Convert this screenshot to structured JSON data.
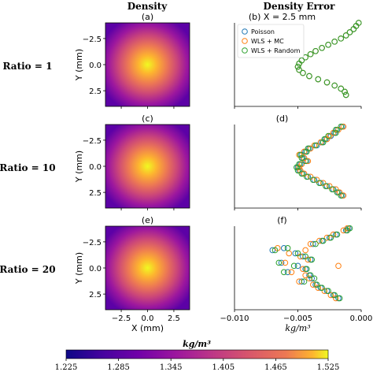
{
  "figure": {
    "col_titles": [
      "Density",
      "Density Error"
    ],
    "row_labels": [
      "Ratio = 1",
      "Ratio = 10",
      "Ratio = 20"
    ],
    "colors": {
      "poisson": "#1f77b4",
      "wls_mc": "#ff7f0e",
      "wls_random": "#2ca02c"
    }
  },
  "chart_data": [
    {
      "type": "heatmap",
      "panel": "(a)",
      "ylabel": "Y (mm)",
      "xlabel": "",
      "xlim": [
        -4,
        4
      ],
      "ylim": [
        -4,
        4
      ],
      "yticks": [
        "−2.5",
        "0.0",
        "2.5"
      ],
      "xticks": [],
      "colormap": "plasma",
      "value_range": [
        1.225,
        1.525
      ],
      "peak_center": [
        0,
        0
      ]
    },
    {
      "type": "scatter",
      "panel": "(b) X = 2.5 mm",
      "xlim": [
        -0.01,
        0.0
      ],
      "ylim": [
        -4,
        4
      ],
      "legend_position": "top-left",
      "series": [
        {
          "name": "Poisson",
          "color": "#1f77b4",
          "x": [
            -0.0002,
            -0.0004,
            -0.0006,
            -0.0009,
            -0.0012,
            -0.0016,
            -0.0021,
            -0.0026,
            -0.0031,
            -0.0036,
            -0.004,
            -0.0044,
            -0.0047,
            -0.0049,
            -0.005,
            -0.0049,
            -0.0046,
            -0.0041,
            -0.0034,
            -0.0027,
            -0.0021,
            -0.0016,
            -0.0013,
            -0.0012
          ],
          "y": [
            4.0,
            3.7,
            3.4,
            3.1,
            2.8,
            2.5,
            2.2,
            1.9,
            1.6,
            1.3,
            1.0,
            0.7,
            0.4,
            0.1,
            -0.2,
            -0.5,
            -0.8,
            -1.1,
            -1.4,
            -1.7,
            -2.0,
            -2.3,
            -2.6,
            -2.9
          ]
        },
        {
          "name": "WLS + MC",
          "color": "#ff7f0e",
          "x": [
            -0.0002,
            -0.0004,
            -0.0006,
            -0.0009,
            -0.0012,
            -0.0016,
            -0.0021,
            -0.0026,
            -0.0031,
            -0.0036,
            -0.004,
            -0.0044,
            -0.0047,
            -0.0049,
            -0.005,
            -0.0049,
            -0.0046,
            -0.0041,
            -0.0034,
            -0.0027,
            -0.0021,
            -0.0016,
            -0.0013,
            -0.0012
          ],
          "y": [
            4.0,
            3.7,
            3.4,
            3.1,
            2.8,
            2.5,
            2.2,
            1.9,
            1.6,
            1.3,
            1.0,
            0.7,
            0.4,
            0.1,
            -0.2,
            -0.5,
            -0.8,
            -1.1,
            -1.4,
            -1.7,
            -2.0,
            -2.3,
            -2.6,
            -2.9
          ]
        },
        {
          "name": "WLS + Random",
          "color": "#2ca02c",
          "x": [
            -0.0002,
            -0.0004,
            -0.0006,
            -0.0009,
            -0.0012,
            -0.0016,
            -0.0021,
            -0.0026,
            -0.0031,
            -0.0036,
            -0.004,
            -0.0044,
            -0.0047,
            -0.0049,
            -0.005,
            -0.0049,
            -0.0046,
            -0.0041,
            -0.0034,
            -0.0027,
            -0.0021,
            -0.0016,
            -0.0013,
            -0.0012
          ],
          "y": [
            4.0,
            3.7,
            3.4,
            3.1,
            2.8,
            2.5,
            2.2,
            1.9,
            1.6,
            1.3,
            1.0,
            0.7,
            0.4,
            0.1,
            -0.2,
            -0.5,
            -0.8,
            -1.1,
            -1.4,
            -1.7,
            -2.0,
            -2.3,
            -2.6,
            -2.9
          ]
        }
      ]
    },
    {
      "type": "heatmap",
      "panel": "(c)",
      "ylabel": "Y (mm)",
      "xlabel": "",
      "xlim": [
        -4,
        4
      ],
      "ylim": [
        -4,
        4
      ],
      "yticks": [
        "−2.5",
        "0.0",
        "2.5"
      ],
      "xticks": [],
      "colormap": "plasma",
      "value_range": [
        1.225,
        1.525
      ],
      "peak_center": [
        0,
        0
      ]
    },
    {
      "type": "scatter",
      "panel": "(d)",
      "xlim": [
        -0.01,
        0.0
      ],
      "ylim": [
        -4,
        4
      ],
      "series": [
        {
          "name": "Poisson",
          "color": "#1f77b4",
          "x": [
            -0.0015,
            -0.0019,
            -0.0021,
            -0.0024,
            -0.0028,
            -0.0031,
            -0.0035,
            -0.0041,
            -0.0044,
            -0.0047,
            -0.0046,
            -0.0043,
            -0.0048,
            -0.005,
            -0.0049,
            -0.0046,
            -0.0042,
            -0.0037,
            -0.0032,
            -0.0027,
            -0.0022,
            -0.0018,
            -0.0015
          ],
          "y": [
            3.8,
            3.5,
            3.2,
            2.9,
            2.6,
            2.3,
            2.0,
            1.7,
            1.4,
            1.1,
            0.8,
            0.5,
            0.2,
            -0.1,
            -0.4,
            -0.7,
            -1.0,
            -1.3,
            -1.6,
            -1.9,
            -2.2,
            -2.5,
            -2.8
          ]
        },
        {
          "name": "WLS + MC",
          "color": "#ff7f0e",
          "x": [
            -0.0014,
            -0.0018,
            -0.0022,
            -0.0025,
            -0.0027,
            -0.0032,
            -0.0037,
            -0.004,
            -0.0045,
            -0.0049,
            -0.0045,
            -0.0042,
            -0.0047,
            -0.0049,
            -0.0048,
            -0.0045,
            -0.004,
            -0.0035,
            -0.003,
            -0.0025,
            -0.002,
            -0.0017,
            -0.0014
          ],
          "y": [
            3.8,
            3.5,
            3.2,
            2.9,
            2.6,
            2.3,
            2.0,
            1.7,
            1.4,
            1.1,
            0.8,
            0.5,
            0.2,
            -0.1,
            -0.4,
            -0.7,
            -1.0,
            -1.3,
            -1.6,
            -1.9,
            -2.2,
            -2.5,
            -2.8
          ]
        },
        {
          "name": "WLS + Random",
          "color": "#2ca02c",
          "x": [
            -0.0016,
            -0.002,
            -0.002,
            -0.0026,
            -0.0029,
            -0.003,
            -0.0036,
            -0.0042,
            -0.0043,
            -0.0048,
            -0.0047,
            -0.0044,
            -0.0049,
            -0.0051,
            -0.005,
            -0.0047,
            -0.0043,
            -0.0038,
            -0.0033,
            -0.0028,
            -0.0023,
            -0.0019,
            -0.0016
          ],
          "y": [
            3.8,
            3.5,
            3.2,
            2.9,
            2.6,
            2.3,
            2.0,
            1.7,
            1.4,
            1.1,
            0.8,
            0.5,
            0.2,
            -0.1,
            -0.4,
            -0.7,
            -1.0,
            -1.3,
            -1.6,
            -1.9,
            -2.2,
            -2.5,
            -2.8
          ]
        }
      ]
    },
    {
      "type": "heatmap",
      "panel": "(e)",
      "ylabel": "Y (mm)",
      "xlabel": "X (mm)",
      "xlim": [
        -4,
        4
      ],
      "ylim": [
        -4,
        4
      ],
      "yticks": [
        "−2.5",
        "0.0",
        "2.5"
      ],
      "xticks": [
        "−2.5",
        "0.0",
        "2.5"
      ],
      "colormap": "plasma",
      "value_range": [
        1.225,
        1.525
      ],
      "peak_center": [
        0,
        0
      ]
    },
    {
      "type": "scatter",
      "panel": "(f)",
      "xlabel": "kg/m³",
      "xlim": [
        -0.01,
        0.0
      ],
      "xticks": [
        "−0.010",
        "−0.005",
        "0.000"
      ],
      "ylim": [
        -4,
        4
      ],
      "series": [
        {
          "name": "Poisson",
          "color": "#1f77b4",
          "x": [
            -0.001,
            -0.0012,
            -0.002,
            -0.0025,
            -0.0031,
            -0.0038,
            -0.0061,
            -0.007,
            -0.0052,
            -0.0046,
            -0.004,
            -0.0063,
            -0.005,
            -0.0044,
            -0.0058,
            -0.0041,
            -0.0039,
            -0.0047,
            -0.0036,
            -0.0032,
            -0.0027,
            -0.0022,
            -0.0018
          ],
          "y": [
            3.8,
            3.6,
            3.2,
            2.9,
            2.6,
            2.3,
            1.9,
            1.7,
            1.4,
            1.1,
            0.8,
            0.5,
            0.2,
            -0.1,
            -0.4,
            -0.7,
            -1.0,
            -1.3,
            -1.6,
            -1.9,
            -2.2,
            -2.6,
            -2.9
          ]
        },
        {
          "name": "WLS + MC",
          "color": "#ff7f0e",
          "x": [
            -0.0011,
            -0.0014,
            -0.0022,
            -0.0027,
            -0.0033,
            -0.004,
            -0.0066,
            -0.0044,
            -0.0057,
            -0.0048,
            -0.0042,
            -0.006,
            -0.0018,
            -0.0046,
            -0.0055,
            -0.0044,
            -0.0041,
            -0.0049,
            -0.0038,
            -0.0034,
            -0.0029,
            -0.0024,
            -0.002
          ],
          "y": [
            3.8,
            3.6,
            3.2,
            2.9,
            2.6,
            2.3,
            1.9,
            1.7,
            1.4,
            1.1,
            0.8,
            0.5,
            0.2,
            -0.1,
            -0.4,
            -0.7,
            -1.0,
            -1.3,
            -1.6,
            -1.9,
            -2.2,
            -2.6,
            -2.9
          ]
        },
        {
          "name": "WLS + Random",
          "color": "#2ca02c",
          "x": [
            -0.0009,
            -0.0011,
            -0.0019,
            -0.0024,
            -0.003,
            -0.0036,
            -0.0058,
            -0.0068,
            -0.005,
            -0.0044,
            -0.0039,
            -0.0065,
            -0.0053,
            -0.0043,
            -0.0061,
            -0.004,
            -0.0037,
            -0.0045,
            -0.0035,
            -0.0031,
            -0.0026,
            -0.0021,
            -0.0017
          ],
          "y": [
            3.8,
            3.6,
            3.2,
            2.9,
            2.6,
            2.3,
            1.9,
            1.7,
            1.4,
            1.1,
            0.8,
            0.5,
            0.2,
            -0.1,
            -0.4,
            -0.7,
            -1.0,
            -1.3,
            -1.6,
            -1.9,
            -2.2,
            -2.6,
            -2.9
          ]
        }
      ]
    }
  ],
  "colorbar": {
    "label": "kg/m³",
    "ticks": [
      "1.225",
      "1.285",
      "1.345",
      "1.405",
      "1.465",
      "1.525"
    ],
    "range": [
      1.225,
      1.525
    ],
    "colormap": "plasma"
  }
}
